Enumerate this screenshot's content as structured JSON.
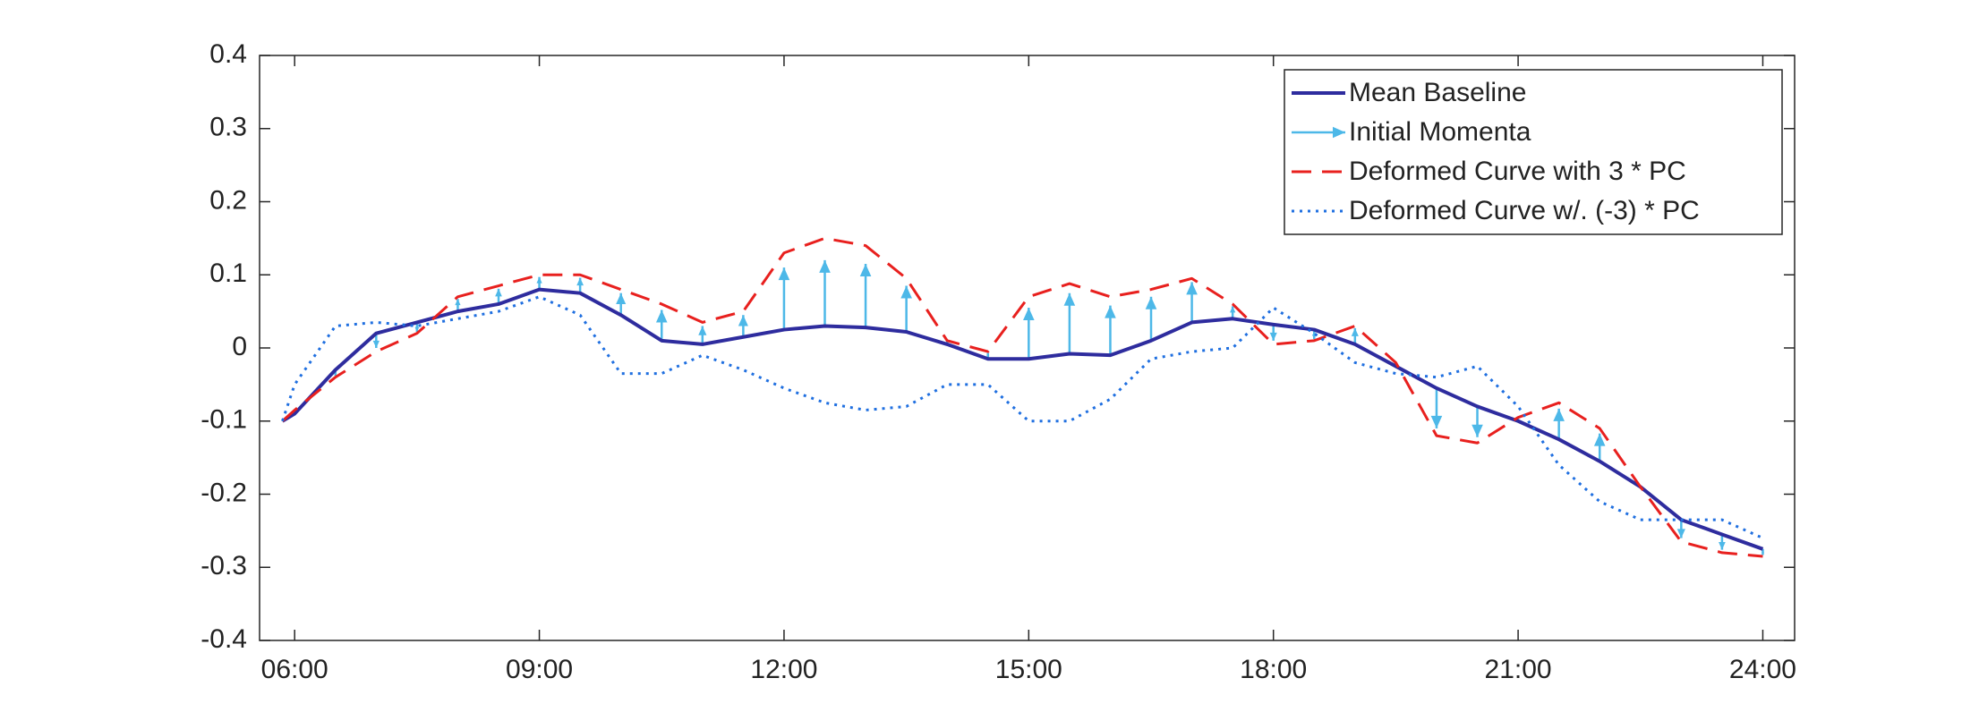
{
  "chart_data": {
    "type": "line",
    "x": [
      5.85,
      6,
      6.5,
      7,
      7.5,
      8,
      8.5,
      9,
      9.5,
      10,
      10.5,
      11,
      11.5,
      12,
      12.5,
      13,
      13.5,
      14,
      14.5,
      15,
      15.5,
      16,
      16.5,
      17,
      17.5,
      18,
      18.5,
      19,
      19.5,
      20,
      20.5,
      21,
      21.5,
      22,
      22.5,
      23,
      23.5,
      24
    ],
    "xlim": [
      5.57,
      24.39
    ],
    "xticks": [
      {
        "value": 6,
        "label": "06:00"
      },
      {
        "value": 9,
        "label": "09:00"
      },
      {
        "value": 12,
        "label": "12:00"
      },
      {
        "value": 15,
        "label": "15:00"
      },
      {
        "value": 18,
        "label": "18:00"
      },
      {
        "value": 21,
        "label": "21:00"
      },
      {
        "value": 24,
        "label": "24:00"
      }
    ],
    "ylim": [
      -0.4,
      0.4
    ],
    "yticks": [
      -0.4,
      -0.3,
      -0.2,
      -0.1,
      0,
      0.1,
      0.2,
      0.3,
      0.4
    ],
    "grid": false,
    "legend": "upper right",
    "series": [
      {
        "name": "Mean Baseline",
        "color": "#2e2c9e",
        "style": "solid",
        "values": [
          -0.1,
          -0.09,
          -0.03,
          0.02,
          0.035,
          0.05,
          0.06,
          0.08,
          0.075,
          0.045,
          0.01,
          0.005,
          0.015,
          0.025,
          0.03,
          0.028,
          0.022,
          0.005,
          -0.015,
          -0.015,
          -0.008,
          -0.01,
          0.01,
          0.035,
          0.04,
          0.032,
          0.025,
          0.005,
          -0.025,
          -0.055,
          -0.08,
          -0.1,
          -0.125,
          -0.155,
          -0.19,
          -0.235,
          -0.255,
          -0.275
        ]
      },
      {
        "name": "Initial Momenta",
        "color": "#4db8e8",
        "style": "arrow",
        "values": [
          -0.1,
          -0.086,
          -0.038,
          0.0,
          0.022,
          0.067,
          0.081,
          0.097,
          0.096,
          0.075,
          0.052,
          0.03,
          0.045,
          0.11,
          0.12,
          0.115,
          0.085,
          0.009,
          -0.007,
          0.055,
          0.075,
          0.058,
          0.07,
          0.09,
          0.057,
          0.01,
          0.012,
          0.027,
          -0.021,
          -0.11,
          -0.122,
          -0.096,
          -0.083,
          -0.117,
          -0.19,
          -0.26,
          -0.276,
          -0.283
        ]
      },
      {
        "name": "Deformed Curve with 3 * PC",
        "color": "#e8201e",
        "style": "dashed",
        "values": [
          -0.1,
          -0.085,
          -0.04,
          -0.005,
          0.02,
          0.07,
          0.085,
          0.1,
          0.1,
          0.08,
          0.06,
          0.035,
          0.05,
          0.13,
          0.15,
          0.14,
          0.095,
          0.01,
          -0.005,
          0.07,
          0.088,
          0.07,
          0.08,
          0.095,
          0.06,
          0.005,
          0.01,
          0.03,
          -0.02,
          -0.12,
          -0.13,
          -0.095,
          -0.075,
          -0.11,
          -0.19,
          -0.265,
          -0.28,
          -0.285
        ]
      },
      {
        "name": "Deformed Curve w/. (-3) * PC",
        "color": "#1f6fe0",
        "style": "dotted",
        "values": [
          -0.1,
          -0.05,
          0.03,
          0.035,
          0.03,
          0.04,
          0.05,
          0.07,
          0.045,
          -0.035,
          -0.035,
          -0.01,
          -0.03,
          -0.055,
          -0.075,
          -0.085,
          -0.08,
          -0.05,
          -0.05,
          -0.1,
          -0.1,
          -0.07,
          -0.015,
          -0.005,
          0.0,
          0.055,
          0.02,
          -0.02,
          -0.035,
          -0.04,
          -0.025,
          -0.08,
          -0.16,
          -0.21,
          -0.235,
          -0.235,
          -0.235,
          -0.26
        ]
      }
    ]
  }
}
